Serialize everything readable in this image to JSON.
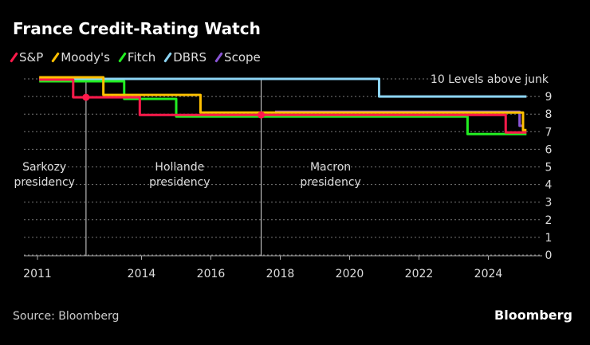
{
  "title": "France Credit-Rating Watch",
  "source": "Source: Bloomberg",
  "brand": "Bloomberg",
  "chart_data": {
    "type": "line",
    "title": "France Credit-Rating Watch",
    "ylabel": "",
    "ylim": [
      0,
      10
    ],
    "xlim": [
      2010.5,
      2025.7
    ],
    "y_ticks": [
      0,
      1,
      2,
      3,
      4,
      5,
      6,
      7,
      8,
      9,
      10
    ],
    "y_top_label": "10 Levels above junk",
    "x_ticks": [
      2011,
      2014,
      2016,
      2018,
      2020,
      2022,
      2024
    ],
    "x_tick_labels": [
      "2011",
      "2014",
      "2016",
      "2018",
      "2020",
      "2022",
      "2024"
    ],
    "grid": "horizontal dotted",
    "legend_position": "top-left",
    "series": [
      {
        "name": "S&P",
        "color": "#ff1a4b",
        "points": [
          [
            2011.05,
            10
          ],
          [
            2012.03,
            10
          ],
          [
            2012.03,
            9
          ],
          [
            2013.95,
            9
          ],
          [
            2013.95,
            8
          ],
          [
            2024.5,
            8
          ],
          [
            2024.5,
            7
          ],
          [
            2025.1,
            7
          ]
        ]
      },
      {
        "name": "Moody's",
        "color": "#ffc000",
        "points": [
          [
            2011.05,
            10
          ],
          [
            2012.9,
            10
          ],
          [
            2012.9,
            9
          ],
          [
            2015.7,
            9
          ],
          [
            2015.7,
            8
          ],
          [
            2025.0,
            8
          ],
          [
            2025.0,
            7
          ],
          [
            2025.1,
            7
          ]
        ]
      },
      {
        "name": "Fitch",
        "color": "#22ee22",
        "points": [
          [
            2011.05,
            10
          ],
          [
            2013.5,
            10
          ],
          [
            2013.5,
            9
          ],
          [
            2015.0,
            9
          ],
          [
            2015.0,
            8
          ],
          [
            2023.4,
            8
          ],
          [
            2023.4,
            7
          ],
          [
            2025.1,
            7
          ]
        ]
      },
      {
        "name": "DBRS",
        "color": "#8dd5f5",
        "points": [
          [
            2011.05,
            10
          ],
          [
            2020.85,
            10
          ],
          [
            2020.85,
            9
          ],
          [
            2025.1,
            9
          ]
        ]
      },
      {
        "name": "Scope",
        "color": "#8a55d6",
        "points": [
          [
            2017.85,
            8
          ],
          [
            2024.9,
            8
          ],
          [
            2024.9,
            7.2
          ],
          [
            2025.0,
            7.2
          ]
        ]
      }
    ],
    "markers": [
      {
        "series": "S&P",
        "x": 2012.4,
        "y": 9
      },
      {
        "series": "S&P",
        "x": 2017.45,
        "y": 8
      }
    ],
    "vertical_lines": [
      2012.4,
      2017.45
    ],
    "annotations": [
      {
        "text": [
          "Sarkozy",
          "presidency"
        ],
        "x": 2011.2
      },
      {
        "text": [
          "Hollande",
          "presidency"
        ],
        "x": 2015.1
      },
      {
        "text": [
          "Macron",
          "presidency"
        ],
        "x": 2019.45
      }
    ]
  }
}
